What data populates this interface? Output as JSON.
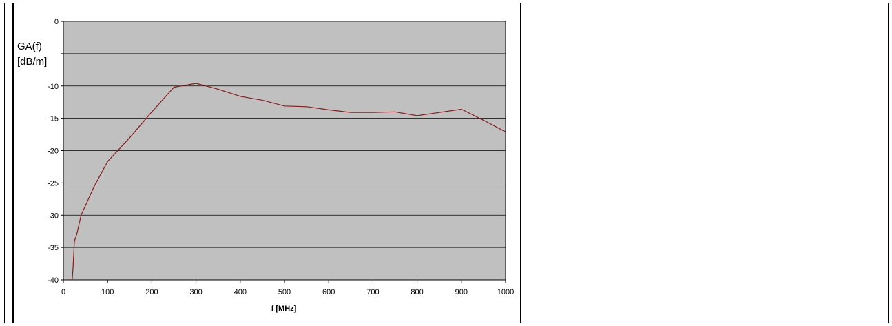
{
  "chart_data": {
    "type": "line",
    "title": "",
    "xlabel": "f [MHz]",
    "ylabel_lines": [
      "GA(f)",
      "[dB/m]"
    ],
    "xlim": [
      0,
      1000
    ],
    "ylim": [
      -40,
      0
    ],
    "x_ticks": [
      0,
      100,
      200,
      300,
      400,
      500,
      600,
      700,
      800,
      900,
      1000
    ],
    "y_ticks": [
      0,
      -5,
      -10,
      -15,
      -20,
      -25,
      -30,
      -35,
      -40
    ],
    "y_tick_labels": [
      "0",
      "",
      "-10",
      "-15",
      "-20",
      "-25",
      "-30",
      "-35",
      "-40"
    ],
    "grid": true,
    "legend": "none",
    "colors": {
      "plot_background": "#c0c0c0",
      "line": "#8b1a1a",
      "gridline": "#000000"
    },
    "series": [
      {
        "x": [
          20,
          22,
          25,
          30,
          40,
          50,
          70,
          100,
          150,
          200,
          250,
          300,
          350,
          400,
          450,
          500,
          550,
          600,
          650,
          700,
          750,
          800,
          850,
          900,
          950,
          1000
        ],
        "y": [
          -40,
          -38,
          -34,
          -33,
          -30,
          -28.5,
          -25.5,
          -21.7,
          -18,
          -14,
          -10.2,
          -9.6,
          -10.5,
          -11.6,
          -12.2,
          -13.1,
          -13.2,
          -13.7,
          -14.1,
          -14.1,
          -14.0,
          -14.6,
          -14.1,
          -13.6,
          -15.3,
          -17.1
        ]
      }
    ]
  }
}
